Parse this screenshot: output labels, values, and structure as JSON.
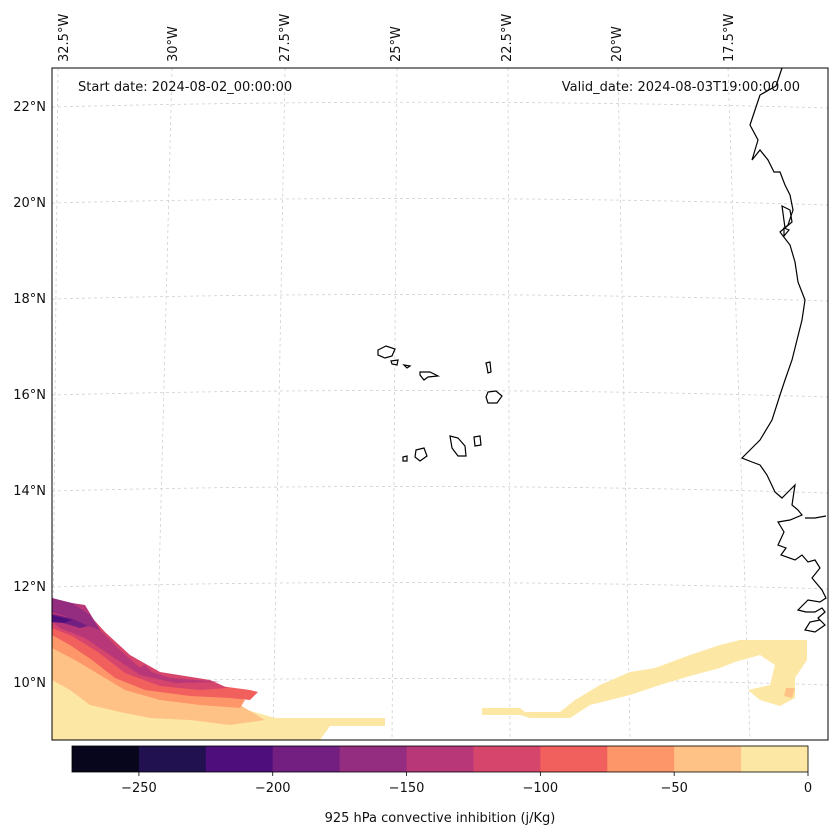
{
  "header": {
    "start_date": "Start date: 2024-08-02_00:00:00",
    "valid_date": "Valid_date: 2024-08-03T19:00:00.00"
  },
  "lon_labels": [
    "32.5°W",
    "30°W",
    "27.5°W",
    "25°W",
    "22.5°W",
    "20°W",
    "17.5°W"
  ],
  "lat_labels": [
    "22°N",
    "20°N",
    "18°N",
    "16°N",
    "14°N",
    "12°N",
    "10°N"
  ],
  "colorbar": {
    "label": "925 hPa convective inhibition (j/Kg)",
    "ticks": [
      "−250",
      "−200",
      "−150",
      "−100",
      "−50",
      "0"
    ],
    "levels": [
      -275,
      -250,
      -225,
      -200,
      -175,
      -150,
      -125,
      -100,
      -75,
      -50,
      -25,
      0
    ],
    "colors": [
      "#07061c",
      "#221150",
      "#4e0f7c",
      "#721f81",
      "#942c80",
      "#b73779",
      "#d6456c",
      "#f1605d",
      "#fd9668",
      "#fec287",
      "#fde7a4"
    ]
  },
  "colors": {
    "coastline": "#000000",
    "gridline": "#cccccc",
    "frame": "#000000"
  }
}
